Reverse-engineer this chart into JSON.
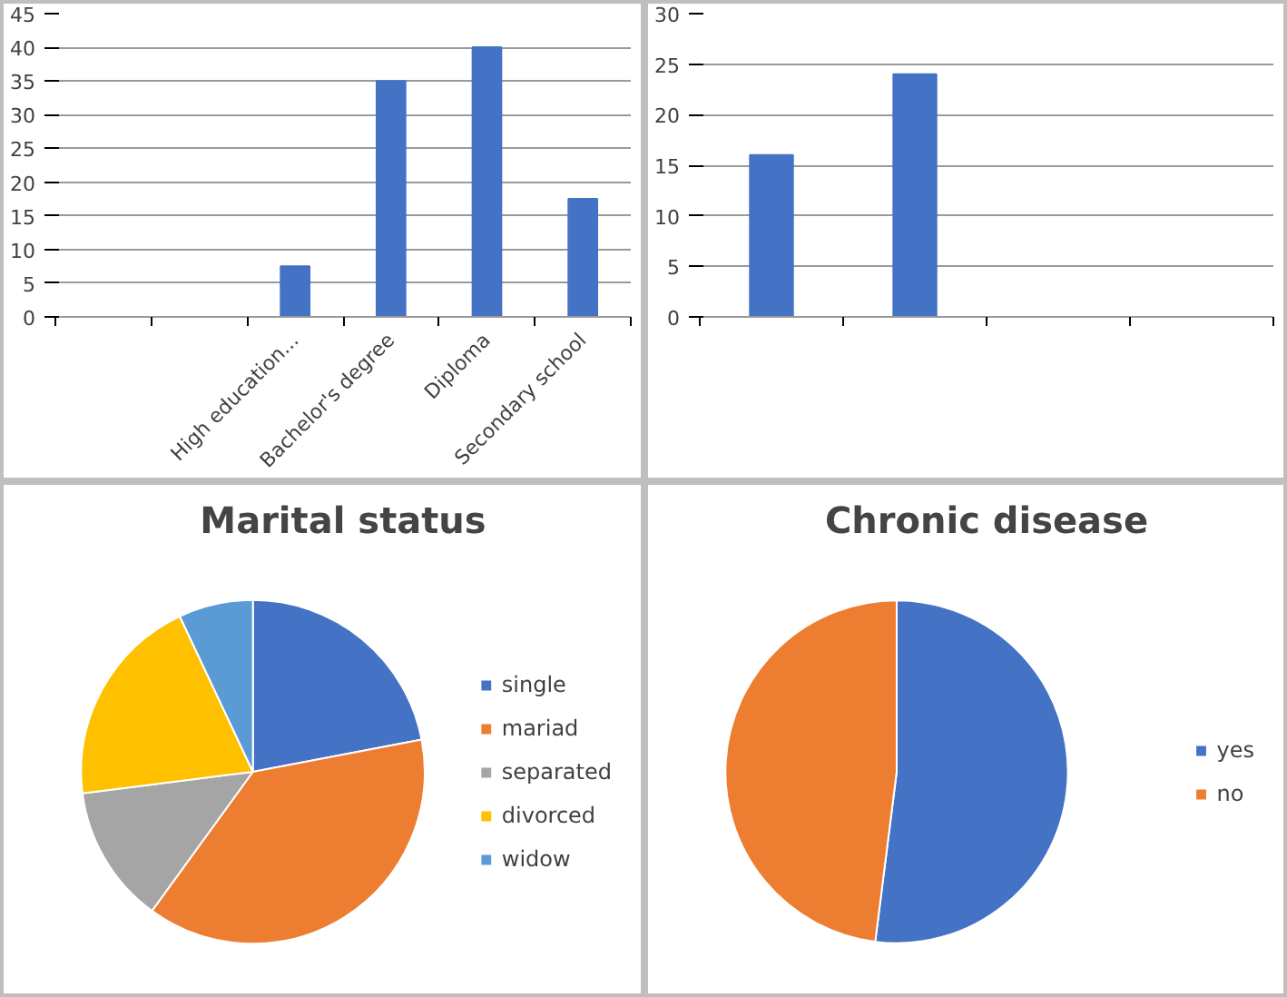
{
  "chart_data": [
    {
      "type": "bar",
      "categories": [
        null,
        null,
        "High education...",
        "Bachelor's degree",
        "Diploma",
        "Secondary school"
      ],
      "values": [
        null,
        null,
        7.5,
        35,
        40,
        17.5
      ],
      "color": "#4472c4",
      "ylim": [
        0,
        45
      ],
      "yticks": [
        0,
        5,
        10,
        15,
        20,
        25,
        30,
        35,
        40,
        45
      ],
      "grid": "y"
    },
    {
      "type": "bar",
      "categories": [
        null,
        null,
        null,
        null
      ],
      "values": [
        16,
        24,
        null,
        null
      ],
      "color": "#4472c4",
      "ylim": [
        0,
        30
      ],
      "yticks": [
        0,
        5,
        10,
        15,
        20,
        25,
        30
      ],
      "grid": "y"
    },
    {
      "type": "pie",
      "title": "Marital status",
      "categories": [
        "single",
        "mariad",
        "separated",
        "divorced",
        "widow"
      ],
      "values": [
        22,
        38,
        13,
        20,
        7
      ],
      "colors": [
        "#4472c4",
        "#ed7d31",
        "#a5a5a5",
        "#ffc000",
        "#5b9bd5"
      ],
      "legend": "right"
    },
    {
      "type": "pie",
      "title": "Chronic disease",
      "categories": [
        "yes",
        "no"
      ],
      "values": [
        52,
        48
      ],
      "colors": [
        "#4472c4",
        "#ed7d31"
      ],
      "legend": "right"
    }
  ]
}
